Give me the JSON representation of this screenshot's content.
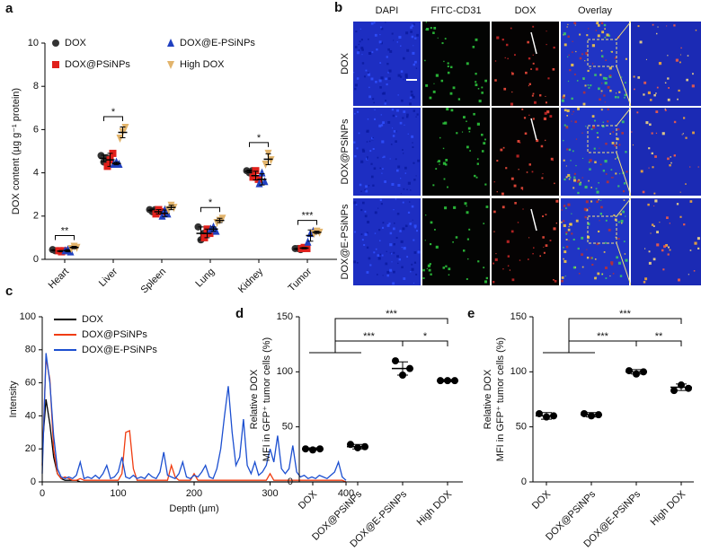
{
  "chart_data": [
    {
      "type": "dot",
      "panel_label": "a",
      "y_label": "DOX content (µg g⁻¹ protein)",
      "categories": [
        "Heart",
        "Liver",
        "Spleen",
        "Lung",
        "Kidney",
        "Tumor"
      ],
      "ylim": [
        0,
        10
      ],
      "yticks": [
        0,
        2,
        4,
        6,
        8,
        10
      ],
      "series": [
        {
          "name": "DOX",
          "color": "#333333",
          "marker": "circle",
          "values": [
            0.42,
            4.67,
            2.27,
            1.2,
            4.07,
            0.48
          ],
          "errors": [
            0.03,
            0.15,
            0.06,
            0.3,
            0.06,
            0.03
          ],
          "points": [
            [
              0.45,
              0.4,
              0.4
            ],
            [
              4.8,
              4.5,
              4.7
            ],
            [
              2.3,
              2.2,
              2.3
            ],
            [
              1.5,
              0.9,
              1.2
            ],
            [
              4.1,
              4.0,
              4.1
            ],
            [
              0.5,
              0.5,
              0.45
            ]
          ]
        },
        {
          "name": "DOX@PSiNPs",
          "color": "#e0201b",
          "marker": "square",
          "values": [
            0.38,
            4.6,
            2.2,
            1.2,
            3.87,
            0.52
          ],
          "errors": [
            0.03,
            0.3,
            0.1,
            0.2,
            0.2,
            0.03
          ],
          "points": [
            [
              0.4,
              0.35,
              0.4
            ],
            [
              4.3,
              4.6,
              4.9
            ],
            [
              2.1,
              2.3,
              2.2
            ],
            [
              1.0,
              1.4,
              1.2
            ],
            [
              3.8,
              4.1,
              3.7
            ],
            [
              0.5,
              0.55,
              0.5
            ]
          ]
        },
        {
          "name": "DOX@E-PSiNPs",
          "color": "#2040c0",
          "marker": "triangle",
          "values": [
            0.4,
            4.43,
            2.13,
            1.4,
            3.7,
            1.1
          ],
          "errors": [
            0.05,
            0.06,
            0.15,
            0.1,
            0.26,
            0.26
          ],
          "points": [
            [
              0.4,
              0.45,
              0.35
            ],
            [
              4.4,
              4.5,
              4.4
            ],
            [
              2.0,
              2.3,
              2.1
            ],
            [
              1.4,
              1.5,
              1.3
            ],
            [
              3.5,
              4.0,
              3.6
            ],
            [
              0.8,
              1.2,
              1.3
            ]
          ]
        },
        {
          "name": "High DOX",
          "color": "#e2b46c",
          "marker": "triangle-down",
          "values": [
            0.55,
            5.87,
            2.4,
            1.8,
            4.63,
            1.25
          ],
          "errors": [
            0.05,
            0.25,
            0.1,
            0.1,
            0.25,
            0.05
          ],
          "points": [
            [
              0.5,
              0.6,
              0.55
            ],
            [
              5.6,
              5.9,
              6.1
            ],
            [
              2.3,
              2.5,
              2.4
            ],
            [
              1.7,
              1.8,
              1.9
            ],
            [
              4.4,
              4.9,
              4.6
            ],
            [
              1.2,
              1.3,
              1.25
            ]
          ]
        }
      ],
      "significance": [
        "**",
        "*",
        null,
        "*",
        "*",
        "***"
      ]
    },
    {
      "type": "line",
      "panel_label": "c",
      "x_label": "Depth (µm)",
      "y_label": "Intensity",
      "xlim": [
        0,
        400
      ],
      "xticks": [
        0,
        100,
        200,
        300,
        400
      ],
      "ylim": [
        0,
        100
      ],
      "yticks": [
        0,
        20,
        40,
        60,
        80,
        100
      ],
      "x": [
        0,
        5,
        10,
        15,
        20,
        25,
        30,
        35,
        40,
        45,
        50,
        55,
        60,
        65,
        70,
        75,
        80,
        85,
        90,
        95,
        100,
        105,
        110,
        115,
        120,
        125,
        130,
        135,
        140,
        145,
        150,
        155,
        160,
        165,
        170,
        175,
        180,
        185,
        190,
        195,
        200,
        205,
        210,
        215,
        220,
        225,
        230,
        235,
        240,
        245,
        250,
        255,
        260,
        265,
        270,
        275,
        280,
        285,
        290,
        295,
        300,
        305,
        310,
        315,
        320,
        325,
        330,
        335,
        340,
        345,
        350,
        355,
        360,
        365,
        370,
        375,
        380,
        385,
        390,
        395,
        400
      ],
      "series": [
        {
          "name": "DOX",
          "color": "#000000",
          "values": [
            20,
            50,
            35,
            15,
            5,
            2,
            1,
            1,
            1,
            1,
            0,
            0,
            0,
            0,
            0,
            0,
            0,
            0,
            0,
            0,
            0,
            0,
            0,
            0,
            0,
            0,
            0,
            0,
            0,
            0,
            0,
            0,
            0,
            0,
            0,
            0,
            0,
            0,
            0,
            0,
            0,
            0,
            0,
            0,
            0,
            0,
            0,
            0,
            0,
            0,
            0,
            0,
            0,
            0,
            0,
            0,
            0,
            0,
            0,
            0,
            0,
            0,
            0,
            0,
            0,
            0,
            0,
            0,
            0,
            0,
            0,
            0,
            0,
            0,
            0,
            0,
            0,
            0,
            0,
            0,
            0
          ]
        },
        {
          "name": "DOX@PSiNPs",
          "color": "#f03c10",
          "values": [
            10,
            75,
            62,
            20,
            5,
            2,
            3,
            2,
            1,
            1,
            2,
            1,
            1,
            1,
            1,
            1,
            1,
            1,
            1,
            1,
            1,
            5,
            30,
            31,
            8,
            1,
            1,
            1,
            1,
            1,
            1,
            1,
            1,
            1,
            10,
            3,
            1,
            1,
            1,
            1,
            5,
            1,
            1,
            1,
            1,
            1,
            1,
            1,
            1,
            1,
            1,
            1,
            1,
            1,
            1,
            1,
            1,
            1,
            1,
            1,
            5,
            1,
            1,
            1,
            1,
            1,
            1,
            1,
            1,
            1,
            1,
            1,
            1,
            1,
            1,
            1,
            1,
            1,
            1,
            1,
            0
          ]
        },
        {
          "name": "DOX@E-PSiNPs",
          "color": "#1c4fd0",
          "values": [
            5,
            78,
            60,
            28,
            8,
            3,
            2,
            3,
            2,
            4,
            12,
            2,
            3,
            2,
            4,
            2,
            5,
            10,
            2,
            3,
            6,
            15,
            3,
            2,
            4,
            2,
            3,
            2,
            5,
            3,
            2,
            6,
            18,
            4,
            3,
            2,
            5,
            12,
            3,
            2,
            4,
            3,
            6,
            10,
            3,
            2,
            8,
            20,
            40,
            58,
            30,
            10,
            15,
            38,
            10,
            5,
            12,
            4,
            6,
            10,
            20,
            12,
            28,
            8,
            5,
            8,
            22,
            6,
            3,
            4,
            2,
            3,
            2,
            4,
            3,
            2,
            4,
            6,
            12,
            3,
            1
          ]
        }
      ]
    },
    {
      "type": "dot",
      "panel_label": "d",
      "y_label": [
        "Relative DOX",
        "MFI  in GFP⁺ tumor cells (%)"
      ],
      "categories": [
        "DOX",
        "DOX@PSiNPs",
        "DOX@E-PSiNPs",
        "High DOX"
      ],
      "ylim": [
        0,
        150
      ],
      "yticks": [
        0,
        50,
        100,
        150
      ],
      "series": [
        {
          "color": "#000000",
          "marker": "circle",
          "values": [
            30,
            32,
            103,
            92
          ],
          "errors": [
            1,
            2,
            6,
            1
          ],
          "points": [
            [
              30,
              29,
              30
            ],
            [
              34,
              31,
              32
            ],
            [
              110,
              97,
              103
            ],
            [
              92,
              92,
              92
            ]
          ]
        }
      ],
      "comparisons": [
        {
          "from": [
            "DOX",
            "DOX@PSiNPs"
          ],
          "to": "DOX@E-PSiNPs",
          "label": "***"
        },
        {
          "from": [
            "DOX@E-PSiNPs"
          ],
          "to": "High DOX",
          "label": "*"
        },
        {
          "from": [
            "DOX",
            "DOX@PSiNPs"
          ],
          "to": "High DOX",
          "label": "***"
        }
      ]
    },
    {
      "type": "dot",
      "panel_label": "e",
      "y_label": [
        "Relative DOX",
        "MFI  in GFP⁺ tumor cells (%)"
      ],
      "categories": [
        "DOX",
        "DOX@PSiNPs",
        "DOX@E-PSiNPs",
        "High DOX"
      ],
      "ylim": [
        0,
        150
      ],
      "yticks": [
        0,
        50,
        100,
        150
      ],
      "series": [
        {
          "color": "#000000",
          "marker": "circle",
          "values": [
            60,
            61,
            100,
            86
          ],
          "errors": [
            3,
            2,
            2,
            3
          ],
          "points": [
            [
              62,
              59,
              60
            ],
            [
              62,
              60,
              61
            ],
            [
              101,
              98,
              100
            ],
            [
              83,
              88,
              85
            ]
          ]
        }
      ],
      "comparisons": [
        {
          "from": [
            "DOX",
            "DOX@PSiNPs"
          ],
          "to": "DOX@E-PSiNPs",
          "label": "***"
        },
        {
          "from": [
            "DOX@E-PSiNPs"
          ],
          "to": "High DOX",
          "label": "**"
        },
        {
          "from": [
            "DOX",
            "DOX@PSiNPs"
          ],
          "to": "High DOX",
          "label": "***"
        }
      ]
    }
  ],
  "image_panel": {
    "panel_label": "b",
    "columns": [
      "DAPI",
      "FITC-CD31",
      "DOX",
      "Overlay"
    ],
    "rows": [
      "DOX",
      "DOX@PSiNPs",
      "DOX@E-PSiNPs"
    ]
  }
}
